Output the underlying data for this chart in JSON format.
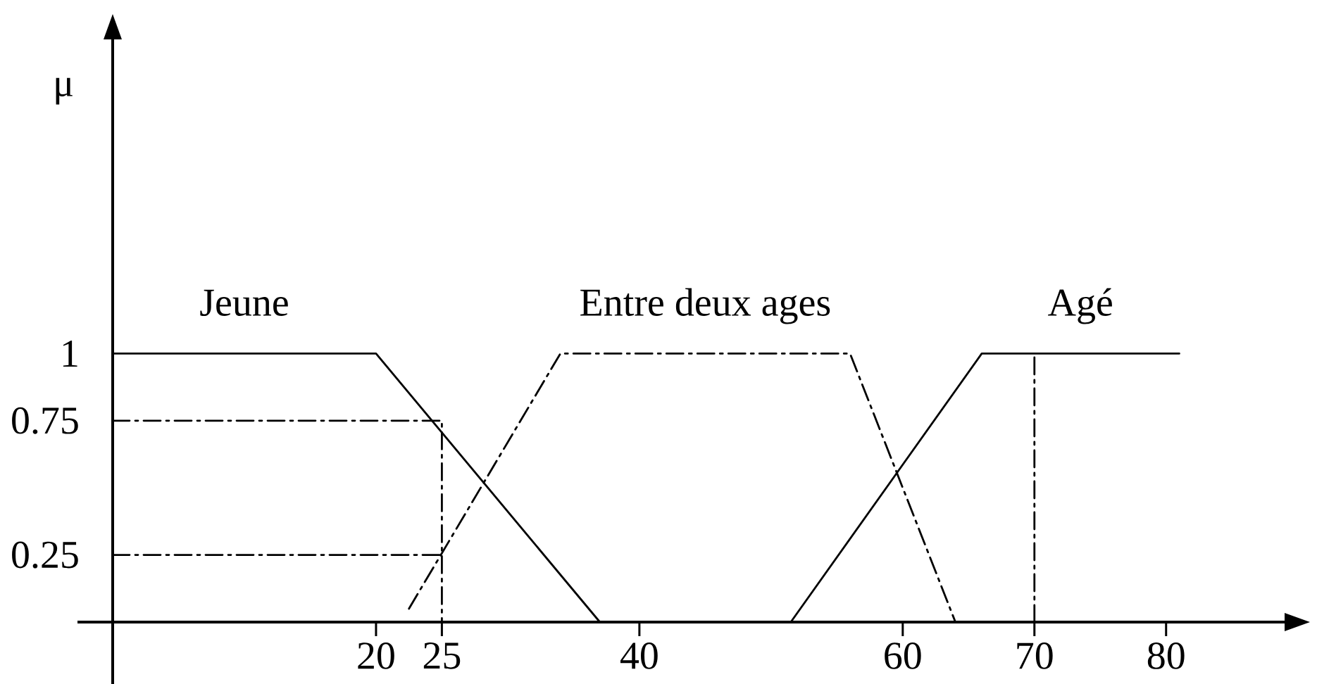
{
  "chart_data": {
    "type": "line",
    "ylabel": "μ",
    "series": [
      {
        "name": "Jeune",
        "color": "#000000",
        "x": [
          0,
          20,
          37
        ],
        "values": [
          1,
          1,
          0
        ],
        "line_style": "solid"
      },
      {
        "name": "Entre deux ages",
        "color": "#000000",
        "x": [
          22.5,
          34,
          56,
          64
        ],
        "values": [
          0.05,
          1,
          1,
          0
        ],
        "line_style": "dashdot"
      },
      {
        "name": "Agé",
        "color": "#000000",
        "x": [
          51.5,
          66,
          81
        ],
        "values": [
          0,
          1,
          1
        ],
        "line_style": "solid"
      },
      {
        "color": "#000000",
        "x": [
          0,
          25,
          25
        ],
        "values": [
          0.75,
          0.75,
          0
        ],
        "line_style": "dashdot"
      },
      {
        "color": "#000000",
        "x": [
          0,
          25
        ],
        "values": [
          0.25,
          0.25
        ],
        "line_style": "dashdot"
      },
      {
        "color": "#000000",
        "x": [
          70,
          70
        ],
        "values": [
          0,
          1
        ],
        "line_style": "dashdot"
      }
    ],
    "xlim": [
      0,
      89
    ],
    "ylim": [
      0,
      2.17
    ],
    "xticks": [
      20,
      25,
      40,
      60,
      70,
      80
    ],
    "yticks": [
      0.25,
      0.75,
      1
    ],
    "marker": "none"
  }
}
